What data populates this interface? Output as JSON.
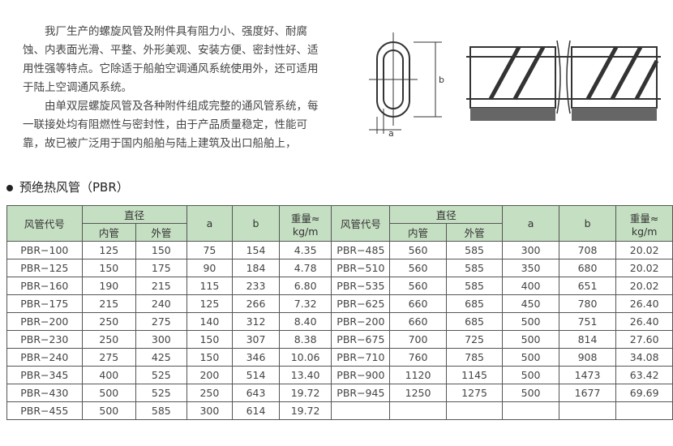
{
  "intro": {
    "p1": "我厂生产的螺旋风管及附件具有阻力小、强度好、耐腐蚀、内表面光滑、平整、外形美观、安装方便、密封性好、适用性强等特点。它除适于船舶空调通风系统使用外，还可适用于陆上空调通风系统。",
    "p2": "由单双层螺旋风管及各种附件组成完整的通风管系统，每一联接处均有阻燃性与密封性，由于产品质量稳定，性能可靠，故已被广泛用于国内船舶与陆上建筑及出口船舶上，"
  },
  "diagram": {
    "label_a": "a",
    "label_b": "b"
  },
  "section_title": "预绝热风管（PBR）",
  "table": {
    "headers": {
      "code": "风管代号",
      "diameter": "直径",
      "inner": "内管",
      "outer": "外管",
      "a": "a",
      "b": "b",
      "weight": "重量≈",
      "weight_unit": "kg/m"
    },
    "left": [
      [
        "PBR−100",
        "125",
        "150",
        "75",
        "154",
        "4.35"
      ],
      [
        "PBR−125",
        "150",
        "175",
        "90",
        "184",
        "4.78"
      ],
      [
        "PBR−160",
        "190",
        "215",
        "115",
        "233",
        "6.80"
      ],
      [
        "PBR−175",
        "215",
        "240",
        "125",
        "266",
        "7.32"
      ],
      [
        "PBR−200",
        "250",
        "275",
        "140",
        "312",
        "8.40"
      ],
      [
        "PBR−230",
        "250",
        "300",
        "150",
        "307",
        "8.38"
      ],
      [
        "PBR−240",
        "275",
        "425",
        "150",
        "346",
        "10.06"
      ],
      [
        "PBR−345",
        "400",
        "525",
        "200",
        "514",
        "13.40"
      ],
      [
        "PBR−430",
        "500",
        "525",
        "250",
        "643",
        "19.72"
      ],
      [
        "PBR−455",
        "500",
        "585",
        "300",
        "614",
        "19.72"
      ]
    ],
    "right": [
      [
        "PBR−485",
        "560",
        "585",
        "300",
        "708",
        "20.02"
      ],
      [
        "PBR−510",
        "560",
        "585",
        "350",
        "680",
        "20.02"
      ],
      [
        "PBR−535",
        "560",
        "585",
        "400",
        "651",
        "20.02"
      ],
      [
        "PBR−625",
        "660",
        "685",
        "450",
        "780",
        "26.40"
      ],
      [
        "PBR−200",
        "660",
        "685",
        "500",
        "751",
        "26.40"
      ],
      [
        "PBR−675",
        "700",
        "725",
        "500",
        "814",
        "27.60"
      ],
      [
        "PBR−710",
        "760",
        "785",
        "500",
        "908",
        "34.08"
      ],
      [
        "PBR−900",
        "1120",
        "1145",
        "500",
        "1473",
        "63.42"
      ],
      [
        "PBR−945",
        "1250",
        "1275",
        "500",
        "1677",
        "69.69"
      ],
      [
        "",
        "",
        "",
        "",
        "",
        ""
      ]
    ]
  },
  "colors": {
    "header_bg": "#c5dfc2"
  }
}
